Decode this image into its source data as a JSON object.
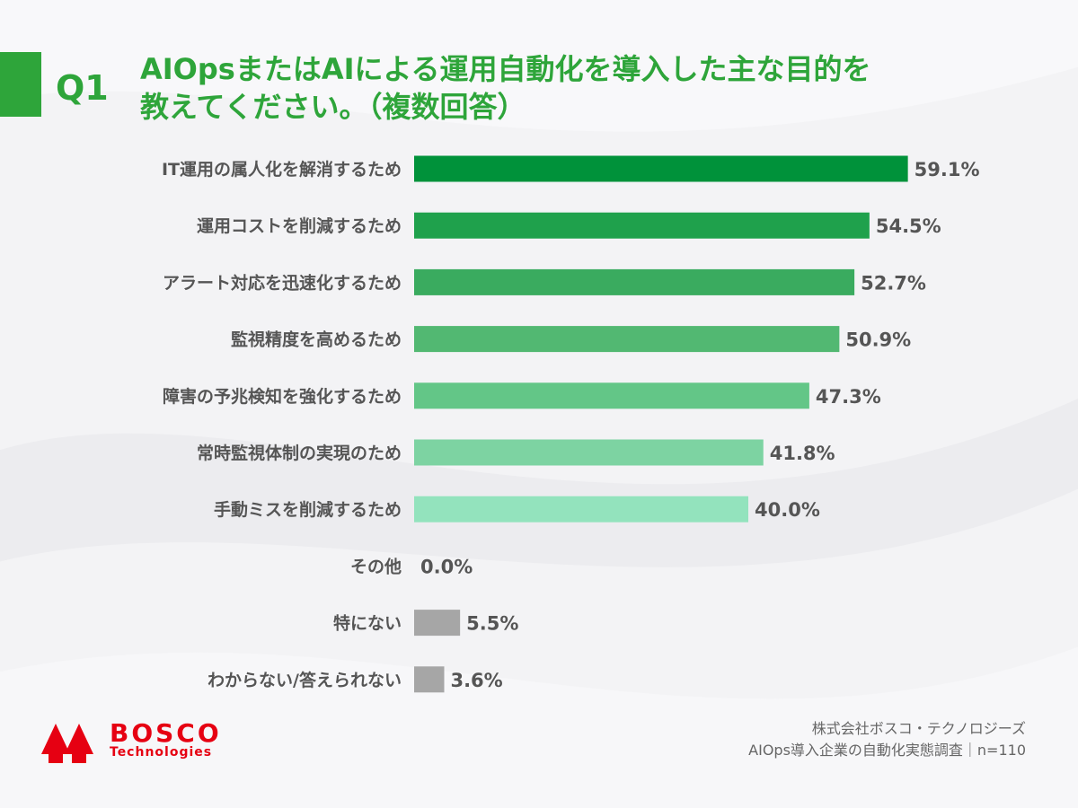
{
  "header": {
    "q_label": "Q1",
    "title_line1": "AIOpsまたはAIによる運用自動化を導入した主な目的を",
    "title_line2": "教えてください。（複数回答）"
  },
  "chart_data": {
    "type": "bar",
    "orientation": "horizontal",
    "categories": [
      "IT運用の属人化を解消するため",
      "運用コストを削減するため",
      "アラート対応を迅速化するため",
      "監視精度を高めるため",
      "障害の予兆検知を強化するため",
      "常時監視体制の実現のため",
      "手動ミスを削減するため",
      "その他",
      "特にない",
      "わからない/答えられない"
    ],
    "values": [
      59.1,
      54.5,
      52.7,
      50.9,
      47.3,
      41.8,
      40.0,
      0.0,
      5.5,
      3.6
    ],
    "value_labels": [
      "59.1%",
      "54.5%",
      "52.7%",
      "50.9%",
      "47.3%",
      "41.8%",
      "40.0%",
      "0.0%",
      "5.5%",
      "3.6%"
    ],
    "colors": [
      "#00923a",
      "#1fa14c",
      "#3aab5f",
      "#52b872",
      "#63c687",
      "#7dd3a2",
      "#93e3bd",
      "#93e3bd",
      "#a6a6a6",
      "#a6a6a6"
    ],
    "xlim": [
      0,
      100
    ],
    "grid": false,
    "legend": "none"
  },
  "brand": {
    "logo_name": "BOSCO",
    "logo_sub": "Technologies",
    "logo_color": "#e60012"
  },
  "footer": {
    "line1": "株式会社ボスコ・テクノロジーズ",
    "line2": "AIOps導入企業の自動化実態調査｜n=110"
  }
}
